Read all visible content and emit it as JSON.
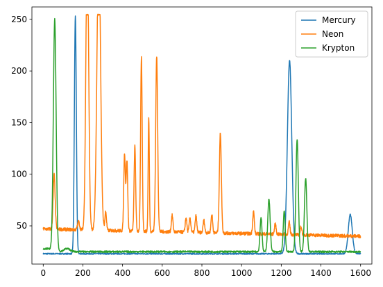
{
  "chart_data": {
    "type": "line",
    "title": "",
    "xlabel": "",
    "ylabel": "",
    "xlim": [
      -57,
      1657
    ],
    "ylim": [
      13,
      262
    ],
    "xticks": [
      0,
      200,
      400,
      600,
      800,
      1000,
      1200,
      1400,
      1600
    ],
    "yticks": [
      50,
      100,
      150,
      200,
      250
    ],
    "grid": false,
    "legend_position": "top-right",
    "series": [
      {
        "name": "Mercury",
        "color": "#1f77b4",
        "baseline": 23,
        "noise": 0.6,
        "peaks": [
          {
            "x": 162,
            "height": 230,
            "width": 5
          },
          {
            "x": 1242,
            "height": 187,
            "width": 11
          },
          {
            "x": 1548,
            "height": 38,
            "width": 10
          }
        ]
      },
      {
        "name": "Neon",
        "color": "#ff7f0e",
        "baseline_start": 47,
        "baseline_end": 40,
        "noise": 1.6,
        "cap": 255,
        "peaks": [
          {
            "x": 55,
            "height": 53,
            "width": 5
          },
          {
            "x": 178,
            "height": 8,
            "width": 5
          },
          {
            "x": 222,
            "height": 280,
            "width": 7
          },
          {
            "x": 280,
            "height": 280,
            "width": 9
          },
          {
            "x": 315,
            "height": 18,
            "width": 4
          },
          {
            "x": 410,
            "height": 75,
            "width": 4
          },
          {
            "x": 422,
            "height": 68,
            "width": 4
          },
          {
            "x": 462,
            "height": 82,
            "width": 4
          },
          {
            "x": 495,
            "height": 168,
            "width": 4
          },
          {
            "x": 532,
            "height": 110,
            "width": 3
          },
          {
            "x": 572,
            "height": 170,
            "width": 5
          },
          {
            "x": 650,
            "height": 16,
            "width": 4
          },
          {
            "x": 720,
            "height": 14,
            "width": 4
          },
          {
            "x": 740,
            "height": 14,
            "width": 4
          },
          {
            "x": 770,
            "height": 16,
            "width": 4
          },
          {
            "x": 810,
            "height": 12,
            "width": 4
          },
          {
            "x": 850,
            "height": 18,
            "width": 4
          },
          {
            "x": 893,
            "height": 97,
            "width": 5
          },
          {
            "x": 1060,
            "height": 22,
            "width": 4
          },
          {
            "x": 1170,
            "height": 10,
            "width": 4
          },
          {
            "x": 1240,
            "height": 12,
            "width": 4
          },
          {
            "x": 1300,
            "height": 8,
            "width": 4
          }
        ]
      },
      {
        "name": "Krypton",
        "color": "#2ca02c",
        "baseline": 25,
        "noise": 0.8,
        "peaks": [
          {
            "x": 15,
            "height": 3,
            "width": 30
          },
          {
            "x": 58,
            "height": 224,
            "width": 7
          },
          {
            "x": 120,
            "height": 3,
            "width": 15
          },
          {
            "x": 1098,
            "height": 33,
            "width": 5
          },
          {
            "x": 1138,
            "height": 51,
            "width": 6
          },
          {
            "x": 1215,
            "height": 39,
            "width": 5
          },
          {
            "x": 1280,
            "height": 109,
            "width": 6
          },
          {
            "x": 1323,
            "height": 71,
            "width": 6
          }
        ]
      }
    ]
  }
}
